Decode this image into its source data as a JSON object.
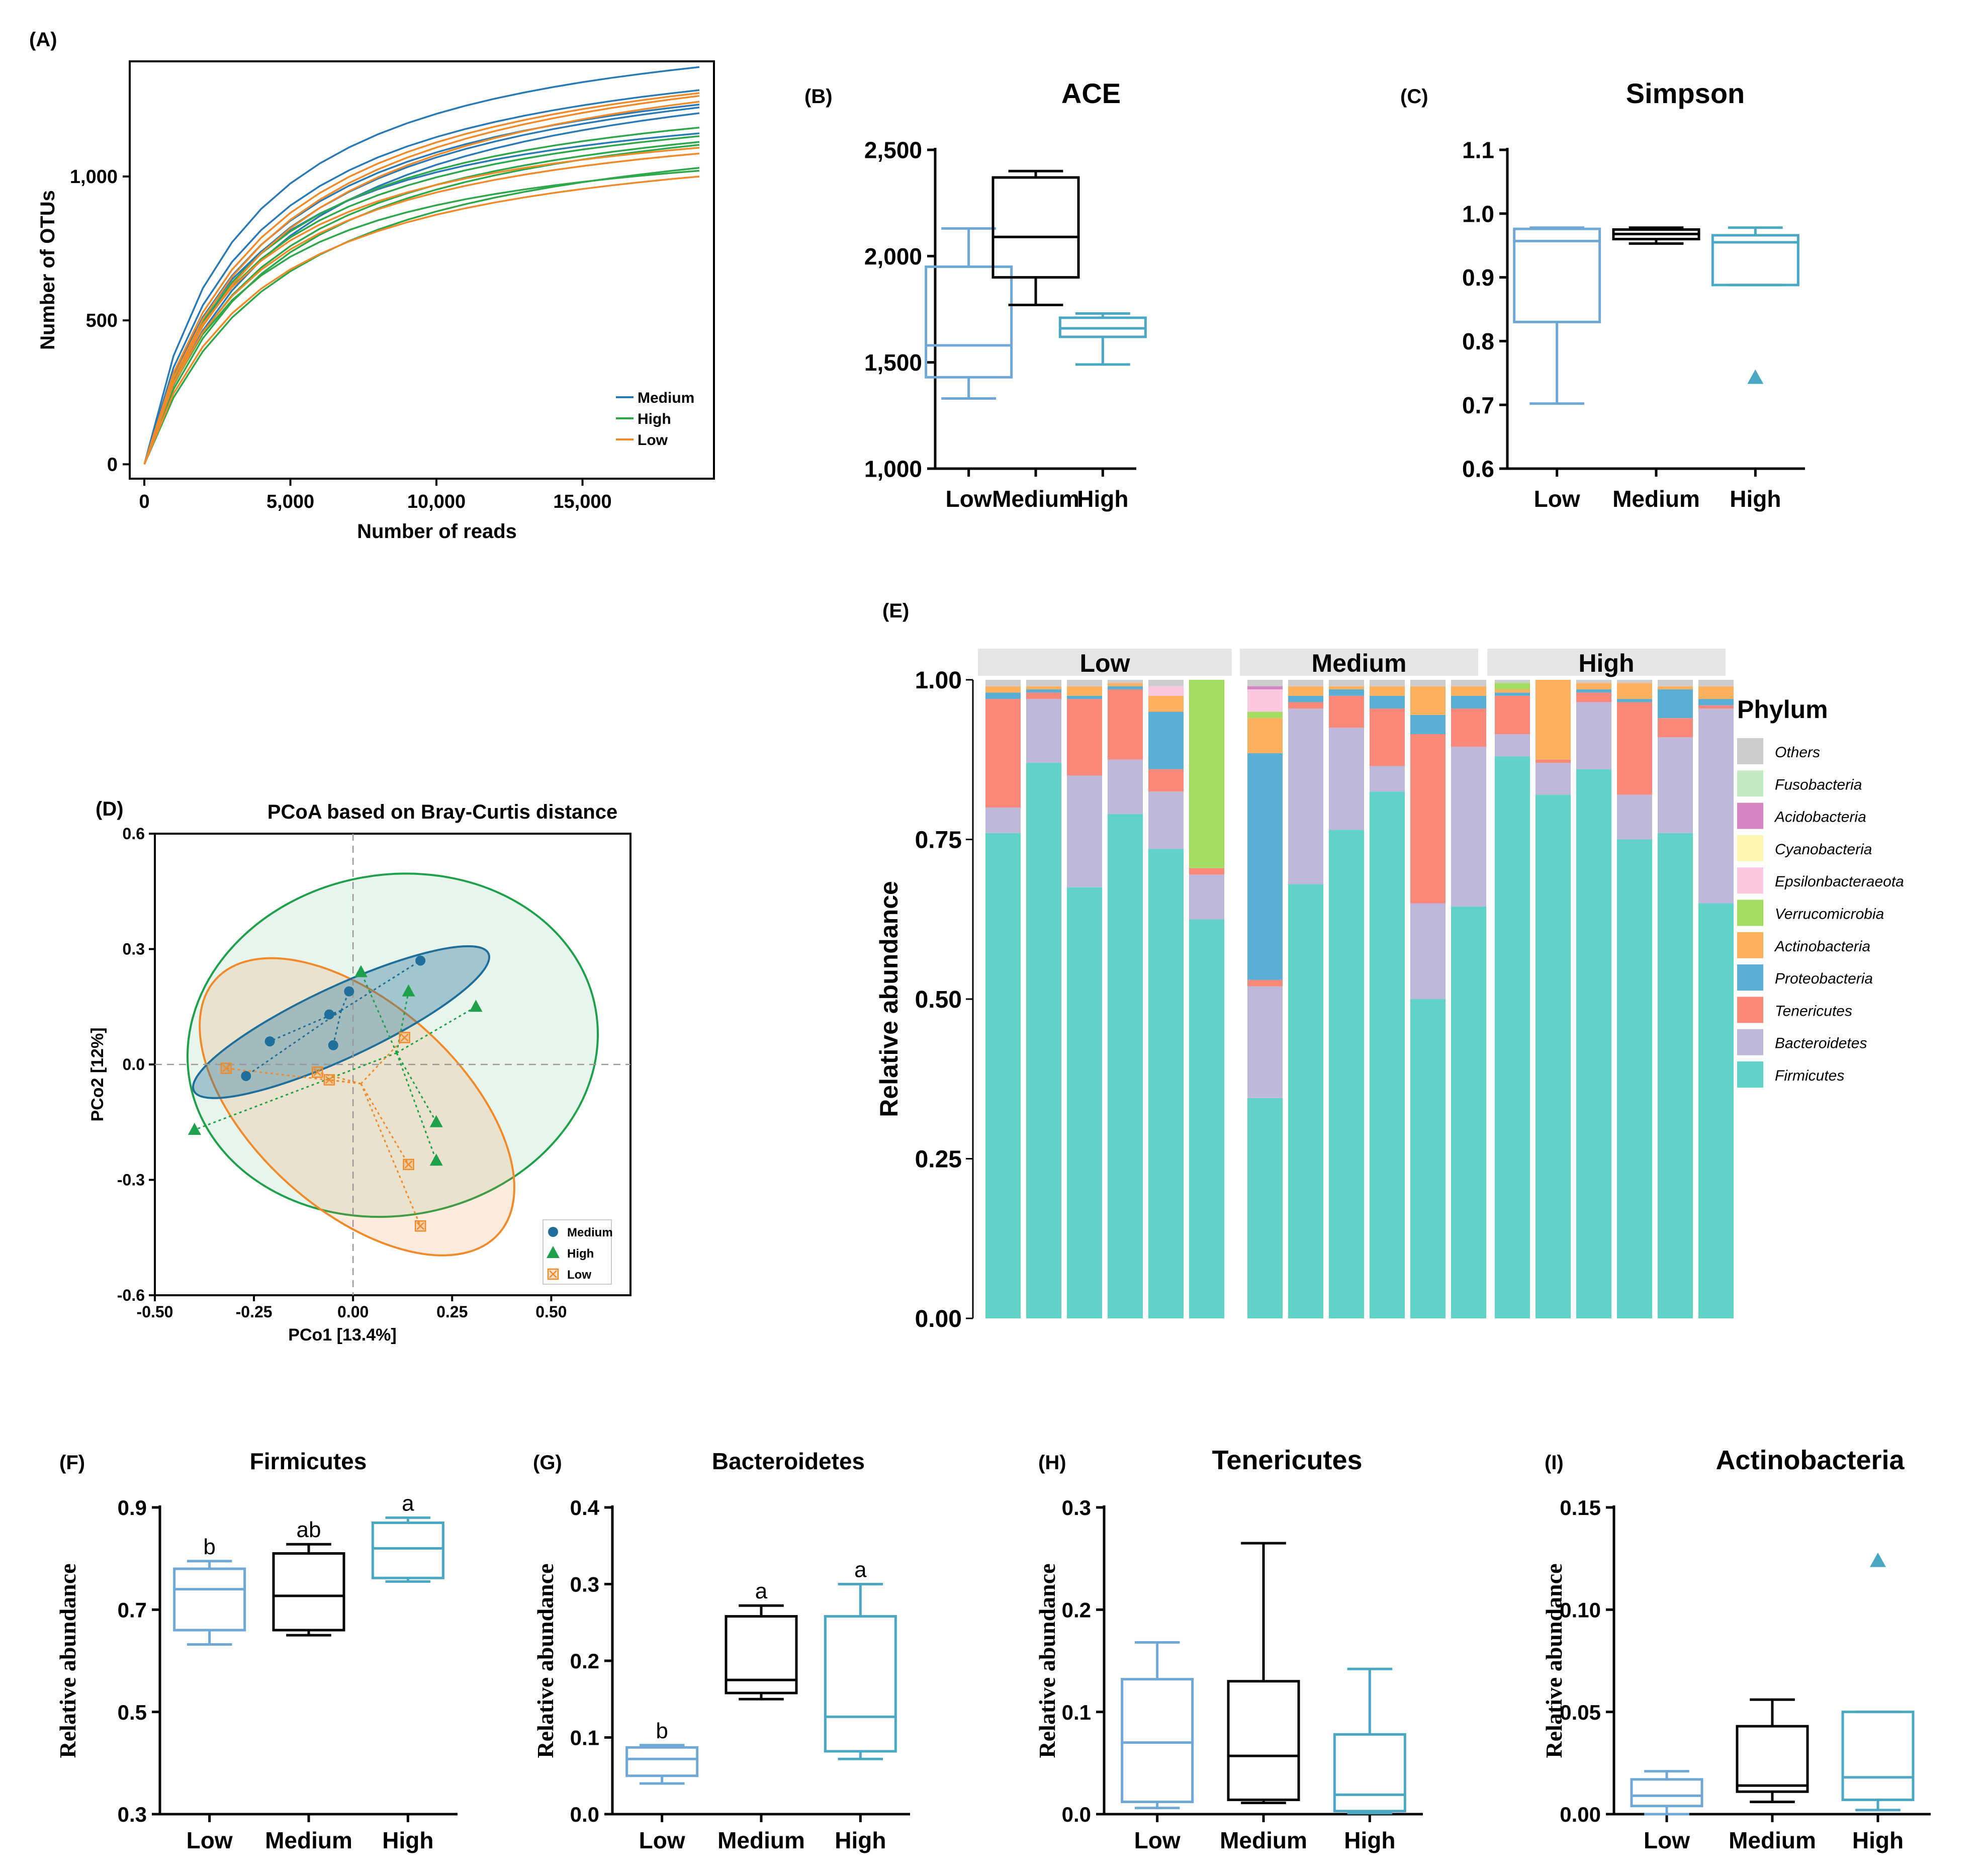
{
  "chart_data": [
    {
      "panel": "(A)",
      "type": "line",
      "title": "",
      "xlabel": "Number of reads",
      "ylabel": "Number of OTUs",
      "xlim": [
        -500,
        19500
      ],
      "ylim": [
        -50,
        1400
      ],
      "xticks": [
        0,
        5000,
        10000,
        15000
      ],
      "xtick_labels": [
        "0",
        "5,000",
        "10,000",
        "15,000"
      ],
      "yticks": [
        0,
        500,
        1000
      ],
      "ytick_labels": [
        "0",
        "500",
        "1,000"
      ],
      "legend": [
        {
          "name": "Medium",
          "color": "#2a7ab5"
        },
        {
          "name": "High",
          "color": "#2ea84a"
        },
        {
          "name": "Low",
          "color": "#f08a2a"
        }
      ],
      "series": [
        {
          "group": "Medium",
          "final": 1380
        },
        {
          "group": "Medium",
          "final": 1300
        },
        {
          "group": "Medium",
          "final": 1250
        },
        {
          "group": "Medium",
          "final": 1240
        },
        {
          "group": "Medium",
          "final": 1220
        },
        {
          "group": "Medium",
          "final": 1150
        },
        {
          "group": "High",
          "final": 1170
        },
        {
          "group": "High",
          "final": 1120
        },
        {
          "group": "High",
          "final": 1110
        },
        {
          "group": "High",
          "final": 1030
        },
        {
          "group": "High",
          "final": 1020
        },
        {
          "group": "High",
          "final": 1140
        },
        {
          "group": "Low",
          "final": 1290
        },
        {
          "group": "Low",
          "final": 1280
        },
        {
          "group": "Low",
          "final": 1260
        },
        {
          "group": "Low",
          "final": 1100
        },
        {
          "group": "Low",
          "final": 1080
        },
        {
          "group": "Low",
          "final": 1000
        }
      ]
    },
    {
      "panel": "(B)",
      "type": "box",
      "title": "ACE",
      "categories": [
        "Low",
        "Medium",
        "High"
      ],
      "colors": [
        "#6fa8d6",
        "#000000",
        "#4aa8c4"
      ],
      "ylim": [
        1000,
        2500
      ],
      "yticks": [
        1000,
        1500,
        2000,
        2500
      ],
      "ytick_labels": [
        "1,000",
        "1,500",
        "2,000",
        "2,500"
      ],
      "boxes": [
        {
          "min": 1330,
          "q1": 1430,
          "median": 1580,
          "q3": 1950,
          "max": 2130
        },
        {
          "min": 1770,
          "q1": 1900,
          "median": 2090,
          "q3": 2370,
          "max": 2400
        },
        {
          "min": 1490,
          "q1": 1620,
          "median": 1660,
          "q3": 1710,
          "max": 1730
        }
      ]
    },
    {
      "panel": "(C)",
      "type": "box",
      "title": "Simpson",
      "categories": [
        "Low",
        "Medium",
        "High"
      ],
      "colors": [
        "#6fa8d6",
        "#000000",
        "#4aa8c4"
      ],
      "ylim": [
        0.6,
        1.1
      ],
      "yticks": [
        0.6,
        0.7,
        0.8,
        0.9,
        1.0,
        1.1
      ],
      "ytick_labels": [
        "0.6",
        "0.7",
        "0.8",
        "0.9",
        "1.0",
        "1.1"
      ],
      "boxes": [
        {
          "min": 0.702,
          "q1": 0.83,
          "median": 0.957,
          "q3": 0.976,
          "max": 0.978
        },
        {
          "min": 0.953,
          "q1": 0.96,
          "median": 0.968,
          "q3": 0.975,
          "max": 0.978
        },
        {
          "min": 0.888,
          "q1": 0.888,
          "median": 0.955,
          "q3": 0.966,
          "max": 0.978,
          "outliers": [
            0.743
          ]
        }
      ]
    },
    {
      "panel": "(D)",
      "type": "scatter",
      "title": "PCoA based on Bray-Curtis distance",
      "xlabel": "PCo1 [13.4%]",
      "ylabel": "PCo2 [12%]",
      "xlim": [
        -0.5,
        0.7
      ],
      "ylim": [
        -0.6,
        0.6
      ],
      "xticks": [
        -0.5,
        -0.25,
        0.0,
        0.25,
        0.5
      ],
      "xtick_labels": [
        "-0.50",
        "-0.25",
        "0.00",
        "0.25",
        "0.50"
      ],
      "yticks": [
        -0.6,
        -0.3,
        0.0,
        0.3,
        0.6
      ],
      "ytick_labels": [
        "-0.6",
        "-0.3",
        "0.0",
        "0.3",
        "0.6"
      ],
      "legend": [
        {
          "name": "Medium",
          "color": "#1f6f9a",
          "marker": "circle"
        },
        {
          "name": "High",
          "color": "#1fa04a",
          "marker": "triangle"
        },
        {
          "name": "Low",
          "color": "#f08a2a",
          "marker": "boxed-x"
        }
      ],
      "groups": [
        {
          "name": "Medium",
          "centroid": [
            -0.03,
            0.14
          ],
          "points": [
            [
              0.17,
              0.27
            ],
            [
              -0.01,
              0.19
            ],
            [
              -0.06,
              0.13
            ],
            [
              -0.21,
              0.06
            ],
            [
              -0.27,
              -0.03
            ],
            [
              -0.05,
              0.05
            ]
          ],
          "ellipse": {
            "cx": -0.03,
            "cy": 0.11,
            "rx": 0.41,
            "ry": 0.09,
            "angle_deg": 25
          }
        },
        {
          "name": "High",
          "centroid": [
            0.11,
            0.03
          ],
          "points": [
            [
              0.02,
              0.24
            ],
            [
              0.14,
              0.19
            ],
            [
              0.31,
              0.15
            ],
            [
              -0.4,
              -0.17
            ],
            [
              0.21,
              -0.15
            ],
            [
              0.21,
              -0.25
            ]
          ],
          "ellipse": {
            "cx": 0.1,
            "cy": 0.05,
            "rx": 0.52,
            "ry": 0.43,
            "angle_deg": 10
          }
        },
        {
          "name": "Low",
          "centroid": [
            0.02,
            -0.05
          ],
          "points": [
            [
              -0.32,
              -0.01
            ],
            [
              -0.09,
              -0.02
            ],
            [
              -0.06,
              -0.04
            ],
            [
              0.13,
              0.07
            ],
            [
              0.14,
              -0.26
            ],
            [
              0.17,
              -0.42
            ]
          ],
          "ellipse": {
            "cx": 0.01,
            "cy": -0.11,
            "rx": 0.48,
            "ry": 0.26,
            "angle_deg": -42
          }
        }
      ]
    },
    {
      "panel": "(E)",
      "type": "stacked-bar",
      "ylabel": "Relative abundance",
      "ylim": [
        0,
        1
      ],
      "yticks": [
        0,
        0.25,
        0.5,
        0.75,
        1.0
      ],
      "ytick_labels": [
        "0.00",
        "0.25",
        "0.50",
        "0.75",
        "1.00"
      ],
      "facets": [
        "Low",
        "Medium",
        "High"
      ],
      "legend_title": "Phylum",
      "phyla": [
        "Firmicutes",
        "Bacteroidetes",
        "Tenericutes",
        "Proteobacteria",
        "Actinobacteria",
        "Verrucomicrobia",
        "Epsilonbacteraeota",
        "Cyanobacteria",
        "Acidobacteria",
        "Fusobacteria",
        "Others"
      ],
      "legend_order": [
        "Others",
        "Fusobacteria",
        "Acidobacteria",
        "Cyanobacteria",
        "Epsilonbacteraeota",
        "Verrucomicrobia",
        "Actinobacteria",
        "Proteobacteria",
        "Tenericutes",
        "Bacteroidetes",
        "Firmicutes"
      ],
      "phylum_colors": {
        "Firmicutes": "#5fd3c6",
        "Bacteroidetes": "#c0b8da",
        "Tenericutes": "#f9877a",
        "Proteobacteria": "#5aaed4",
        "Actinobacteria": "#fbb15f",
        "Verrucomicrobia": "#a4dc63",
        "Epsilonbacteraeota": "#fcc8e0",
        "Cyanobacteria": "#fdf7b2",
        "Acidobacteria": "#d786c4",
        "Fusobacteria": "#c4eac2",
        "Others": "#cccccc"
      },
      "samples": [
        {
          "facet": "Low",
          "values": {
            "Firmicutes": 0.76,
            "Bacteroidetes": 0.04,
            "Tenericutes": 0.17,
            "Proteobacteria": 0.01,
            "Actinobacteria": 0.01,
            "Others": 0.01
          }
        },
        {
          "facet": "Low",
          "values": {
            "Firmicutes": 0.87,
            "Bacteroidetes": 0.1,
            "Tenericutes": 0.01,
            "Proteobacteria": 0.005,
            "Actinobacteria": 0.005,
            "Others": 0.01
          }
        },
        {
          "facet": "Low",
          "values": {
            "Firmicutes": 0.675,
            "Bacteroidetes": 0.175,
            "Tenericutes": 0.12,
            "Proteobacteria": 0.005,
            "Actinobacteria": 0.015,
            "Others": 0.01
          }
        },
        {
          "facet": "Low",
          "values": {
            "Firmicutes": 0.79,
            "Bacteroidetes": 0.085,
            "Tenericutes": 0.11,
            "Proteobacteria": 0.005,
            "Actinobacteria": 0.005,
            "Others": 0.005
          }
        },
        {
          "facet": "Low",
          "values": {
            "Firmicutes": 0.735,
            "Bacteroidetes": 0.09,
            "Tenericutes": 0.035,
            "Proteobacteria": 0.09,
            "Actinobacteria": 0.025,
            "Epsilonbacteraeota": 0.015,
            "Others": 0.01
          }
        },
        {
          "facet": "Low",
          "values": {
            "Firmicutes": 0.625,
            "Bacteroidetes": 0.07,
            "Tenericutes": 0.01,
            "Verrucomicrobia": 0.295
          }
        },
        {
          "facet": "Medium",
          "values": {
            "Firmicutes": 0.345,
            "Bacteroidetes": 0.175,
            "Tenericutes": 0.01,
            "Proteobacteria": 0.355,
            "Actinobacteria": 0.055,
            "Verrucomicrobia": 0.01,
            "Epsilonbacteraeota": 0.035,
            "Acidobacteria": 0.005,
            "Others": 0.01
          }
        },
        {
          "facet": "Medium",
          "values": {
            "Firmicutes": 0.68,
            "Bacteroidetes": 0.275,
            "Tenericutes": 0.01,
            "Proteobacteria": 0.01,
            "Actinobacteria": 0.015,
            "Others": 0.01
          }
        },
        {
          "facet": "Medium",
          "values": {
            "Firmicutes": 0.765,
            "Bacteroidetes": 0.16,
            "Tenericutes": 0.05,
            "Proteobacteria": 0.01,
            "Actinobacteria": 0.005,
            "Others": 0.01
          }
        },
        {
          "facet": "Medium",
          "values": {
            "Firmicutes": 0.825,
            "Bacteroidetes": 0.04,
            "Tenericutes": 0.09,
            "Proteobacteria": 0.02,
            "Actinobacteria": 0.015,
            "Others": 0.01
          }
        },
        {
          "facet": "Medium",
          "values": {
            "Firmicutes": 0.5,
            "Bacteroidetes": 0.15,
            "Tenericutes": 0.265,
            "Proteobacteria": 0.03,
            "Actinobacteria": 0.045,
            "Others": 0.01
          }
        },
        {
          "facet": "Medium",
          "values": {
            "Firmicutes": 0.645,
            "Bacteroidetes": 0.25,
            "Tenericutes": 0.06,
            "Proteobacteria": 0.02,
            "Actinobacteria": 0.015,
            "Others": 0.01
          }
        },
        {
          "facet": "High",
          "values": {
            "Firmicutes": 0.88,
            "Bacteroidetes": 0.035,
            "Tenericutes": 0.06,
            "Proteobacteria": 0.005,
            "Verrucomicrobia": 0.01,
            "Actinobacteria": 0.005,
            "Others": 0.005
          }
        },
        {
          "facet": "High",
          "values": {
            "Firmicutes": 0.82,
            "Bacteroidetes": 0.05,
            "Tenericutes": 0.005,
            "Actinobacteria": 0.125
          }
        },
        {
          "facet": "High",
          "values": {
            "Firmicutes": 0.86,
            "Bacteroidetes": 0.105,
            "Tenericutes": 0.015,
            "Proteobacteria": 0.005,
            "Actinobacteria": 0.01,
            "Others": 0.005
          }
        },
        {
          "facet": "High",
          "values": {
            "Firmicutes": 0.75,
            "Bacteroidetes": 0.07,
            "Tenericutes": 0.145,
            "Proteobacteria": 0.005,
            "Actinobacteria": 0.025,
            "Others": 0.005
          }
        },
        {
          "facet": "High",
          "values": {
            "Firmicutes": 0.76,
            "Bacteroidetes": 0.15,
            "Tenericutes": 0.03,
            "Proteobacteria": 0.045,
            "Actinobacteria": 0.005,
            "Others": 0.01
          }
        },
        {
          "facet": "High",
          "values": {
            "Firmicutes": 0.65,
            "Bacteroidetes": 0.305,
            "Tenericutes": 0.005,
            "Proteobacteria": 0.01,
            "Actinobacteria": 0.02,
            "Others": 0.01
          }
        }
      ]
    },
    {
      "panel": "(F)",
      "type": "box",
      "title": "Firmicutes",
      "ylabel": "Relative abundance",
      "categories": [
        "Low",
        "Medium",
        "High"
      ],
      "colors": [
        "#6fa8d6",
        "#000000",
        "#4aa8c4"
      ],
      "ylim": [
        0.3,
        0.9
      ],
      "yticks": [
        0.3,
        0.5,
        0.7,
        0.9
      ],
      "ytick_labels": [
        "0.3",
        "0.5",
        "0.7",
        "0.9"
      ],
      "letters": [
        "b",
        "ab",
        "a"
      ],
      "boxes": [
        {
          "min": 0.632,
          "q1": 0.66,
          "median": 0.74,
          "q3": 0.78,
          "max": 0.795
        },
        {
          "min": 0.65,
          "q1": 0.66,
          "median": 0.727,
          "q3": 0.81,
          "max": 0.828
        },
        {
          "min": 0.755,
          "q1": 0.762,
          "median": 0.82,
          "q3": 0.87,
          "max": 0.88
        }
      ]
    },
    {
      "panel": "(G)",
      "type": "box",
      "title": "Bacteroidetes",
      "ylabel": "Relative abundance",
      "categories": [
        "Low",
        "Medium",
        "High"
      ],
      "colors": [
        "#6fa8d6",
        "#000000",
        "#4aa8c4"
      ],
      "ylim": [
        0.0,
        0.4
      ],
      "yticks": [
        0.0,
        0.1,
        0.2,
        0.3,
        0.4
      ],
      "ytick_labels": [
        "0.0",
        "0.1",
        "0.2",
        "0.3",
        "0.4"
      ],
      "letters": [
        "b",
        "a",
        "a"
      ],
      "boxes": [
        {
          "min": 0.04,
          "q1": 0.05,
          "median": 0.072,
          "q3": 0.087,
          "max": 0.09
        },
        {
          "min": 0.15,
          "q1": 0.158,
          "median": 0.175,
          "q3": 0.258,
          "max": 0.272
        },
        {
          "min": 0.072,
          "q1": 0.082,
          "median": 0.127,
          "q3": 0.258,
          "max": 0.3
        }
      ]
    },
    {
      "panel": "(H)",
      "type": "box",
      "title": "Tenericutes",
      "ylabel": "Relative abundance",
      "categories": [
        "Low",
        "Medium",
        "High"
      ],
      "colors": [
        "#6fa8d6",
        "#000000",
        "#4aa8c4"
      ],
      "ylim": [
        0.0,
        0.3
      ],
      "yticks": [
        0.0,
        0.1,
        0.2,
        0.3
      ],
      "ytick_labels": [
        "0.0",
        "0.1",
        "0.2",
        "0.3"
      ],
      "boxes": [
        {
          "min": 0.006,
          "q1": 0.012,
          "median": 0.07,
          "q3": 0.132,
          "max": 0.168
        },
        {
          "min": 0.011,
          "q1": 0.014,
          "median": 0.057,
          "q3": 0.13,
          "max": 0.265
        },
        {
          "min": 0.001,
          "q1": 0.003,
          "median": 0.019,
          "q3": 0.078,
          "max": 0.142
        }
      ]
    },
    {
      "panel": "(I)",
      "type": "box",
      "title": "Actinobacteria",
      "ylabel": "Relative abundance",
      "categories": [
        "Low",
        "Medium",
        "High"
      ],
      "colors": [
        "#6fa8d6",
        "#000000",
        "#4aa8c4"
      ],
      "ylim": [
        0.0,
        0.15
      ],
      "yticks": [
        0.0,
        0.05,
        0.1,
        0.15
      ],
      "ytick_labels": [
        "0.00",
        "0.05",
        "0.10",
        "0.15"
      ],
      "boxes": [
        {
          "min": 0.0,
          "q1": 0.004,
          "median": 0.009,
          "q3": 0.017,
          "max": 0.021
        },
        {
          "min": 0.006,
          "q1": 0.011,
          "median": 0.014,
          "q3": 0.043,
          "max": 0.056
        },
        {
          "min": 0.002,
          "q1": 0.007,
          "median": 0.018,
          "q3": 0.05,
          "max": 0.05,
          "outliers": [
            0.124
          ]
        }
      ]
    }
  ]
}
